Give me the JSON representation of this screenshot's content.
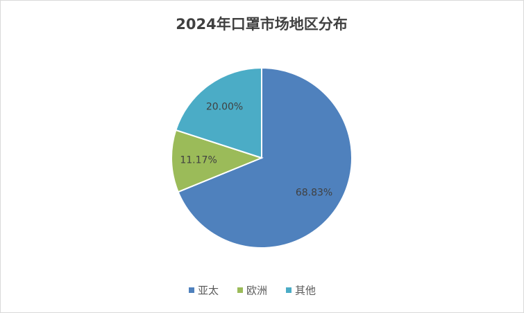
{
  "chart_data": {
    "type": "pie",
    "title": "2024年口罩市场地区分布",
    "categories": [
      "亚太",
      "欧洲",
      "其他"
    ],
    "values": [
      68.83,
      11.17,
      20.0
    ],
    "value_labels": [
      "68.83%",
      "11.17%",
      "20.00%"
    ],
    "colors": [
      "#4f81bd",
      "#9bbb59",
      "#4bacc6"
    ],
    "legend": "bottom"
  }
}
